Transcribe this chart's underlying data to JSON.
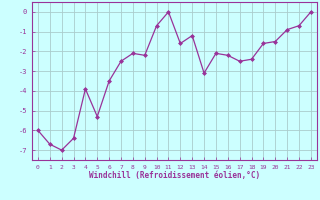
{
  "x": [
    0,
    1,
    2,
    3,
    4,
    5,
    6,
    7,
    8,
    9,
    10,
    11,
    12,
    13,
    14,
    15,
    16,
    17,
    18,
    19,
    20,
    21,
    22,
    23
  ],
  "y": [
    -6.0,
    -6.7,
    -7.0,
    -6.4,
    -3.9,
    -5.3,
    -3.5,
    -2.5,
    -2.1,
    -2.2,
    -0.7,
    0.0,
    -1.6,
    -1.2,
    -3.1,
    -2.1,
    -2.2,
    -2.5,
    -2.4,
    -1.6,
    -1.5,
    -0.9,
    -0.7,
    0.0
  ],
  "line_color": "#993399",
  "marker": "D",
  "marker_size": 2.0,
  "bg_color": "#ccffff",
  "grid_color": "#aacccc",
  "xlabel": "Windchill (Refroidissement éolien,°C)",
  "xlabel_color": "#993399",
  "tick_color": "#993399",
  "spine_color": "#993399",
  "xlim_min": -0.5,
  "xlim_max": 23.5,
  "ylim_min": -7.5,
  "ylim_max": 0.5,
  "yticks": [
    0,
    -1,
    -2,
    -3,
    -4,
    -5,
    -6,
    -7
  ],
  "xticks": [
    0,
    1,
    2,
    3,
    4,
    5,
    6,
    7,
    8,
    9,
    10,
    11,
    12,
    13,
    14,
    15,
    16,
    17,
    18,
    19,
    20,
    21,
    22,
    23
  ],
  "tick_fontsize": 4.5,
  "xlabel_fontsize": 5.5,
  "linewidth": 0.9
}
